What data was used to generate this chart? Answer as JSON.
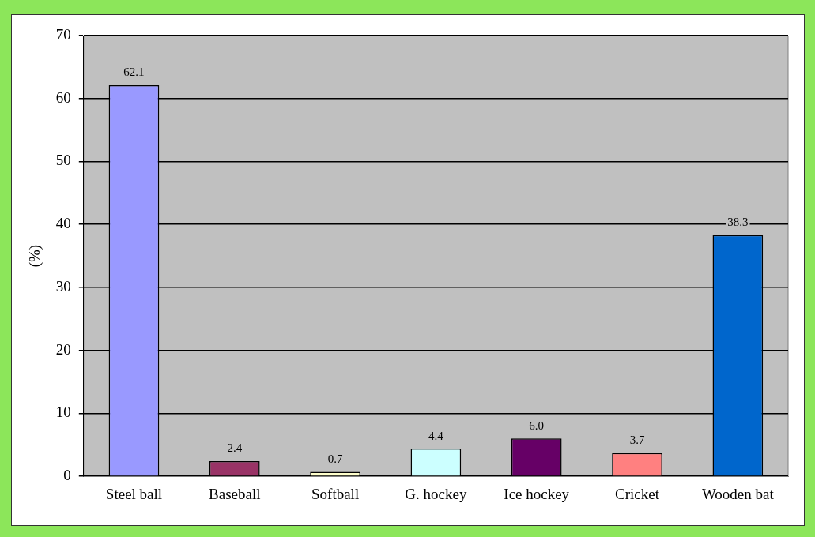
{
  "chart_data": {
    "type": "bar",
    "ylabel": "(%)",
    "categories": [
      "Steel ball",
      "Baseball",
      "Softball",
      "G. hockey",
      "Ice hockey",
      "Cricket",
      "Wooden bat"
    ],
    "values": [
      62.1,
      2.4,
      0.7,
      4.4,
      6.0,
      3.7,
      38.3
    ],
    "value_labels": [
      "62.1",
      "2.4",
      "0.7",
      "4.4",
      "6.0",
      "3.7",
      "38.3"
    ],
    "colors": [
      "#9999ff",
      "#993366",
      "#ffffcc",
      "#ccffff",
      "#660066",
      "#ff8080",
      "#0066cc"
    ],
    "ylim": [
      0,
      70
    ],
    "yticks": [
      0,
      10,
      20,
      30,
      40,
      50,
      60,
      70
    ],
    "grid": "y",
    "legend": false
  }
}
